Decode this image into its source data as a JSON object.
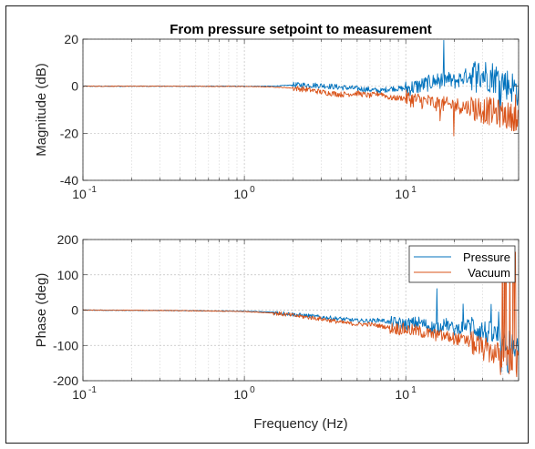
{
  "chart_data": [
    {
      "type": "line",
      "title": "From pressure setpoint to measurement",
      "xlabel": "",
      "ylabel": "Magnitude (dB)",
      "xscale": "log",
      "xlim": [
        0.1,
        50
      ],
      "ylim": [
        -40,
        20
      ],
      "xticks": [
        {
          "base": "10",
          "exp": "-1"
        },
        {
          "base": "10",
          "exp": "0"
        },
        {
          "base": "10",
          "exp": "1"
        }
      ],
      "yticks": [
        "20",
        "0",
        "-20",
        "-40"
      ],
      "ytick_values": [
        20,
        0,
        -20,
        -40
      ],
      "grid": "on (major and minor)",
      "series": [
        {
          "color": "#0072BD",
          "x": [
            0.1,
            0.3,
            1,
            1.5,
            2,
            2.5,
            3,
            4,
            5,
            6,
            7,
            8,
            10,
            12,
            15,
            18,
            20,
            25,
            30,
            35,
            40,
            45,
            50
          ],
          "y": [
            0,
            0,
            0,
            0,
            0.5,
            0.5,
            0.3,
            -0.5,
            -1,
            -1.5,
            -2,
            -1,
            -1,
            0,
            2,
            3,
            2,
            5,
            5,
            4,
            2,
            0,
            -2
          ]
        },
        {
          "color": "#D95319",
          "x": [
            0.1,
            0.3,
            1,
            1.5,
            2,
            2.5,
            3,
            4,
            5,
            6,
            7,
            8,
            10,
            12,
            15,
            18,
            20,
            25,
            30,
            35,
            40,
            45,
            50
          ],
          "y": [
            0,
            0,
            -0.1,
            -0.3,
            -0.8,
            -1.5,
            -2.5,
            -3.5,
            -3,
            -4,
            -3,
            -5,
            -5,
            -6,
            -7,
            -8,
            -8,
            -9,
            -10,
            -11,
            -12,
            -13,
            -13
          ]
        }
      ]
    },
    {
      "type": "line",
      "title": "",
      "xlabel": "Frequency (Hz)",
      "ylabel": "Phase (deg)",
      "xscale": "log",
      "xlim": [
        0.1,
        50
      ],
      "ylim": [
        -200,
        200
      ],
      "xticks": [
        {
          "base": "10",
          "exp": "-1"
        },
        {
          "base": "10",
          "exp": "0"
        },
        {
          "base": "10",
          "exp": "1"
        }
      ],
      "yticks": [
        "200",
        "100",
        "0",
        "-100",
        "-200"
      ],
      "ytick_values": [
        200,
        100,
        0,
        -100,
        -200
      ],
      "grid": "on (major and minor)",
      "legend_position": "top-right",
      "series": [
        {
          "name": "Pressure",
          "color": "#0072BD",
          "x": [
            0.1,
            0.3,
            0.5,
            1,
            1.5,
            2,
            3,
            4,
            5,
            6,
            7,
            8,
            10,
            12,
            15,
            18,
            20,
            25,
            30,
            35,
            40,
            45,
            50
          ],
          "y": [
            0,
            -1,
            -2,
            -3,
            -6,
            -12,
            -20,
            -25,
            -30,
            -30,
            -28,
            -35,
            -40,
            -35,
            -50,
            -40,
            -55,
            -40,
            -60,
            -70,
            -80,
            -90,
            -110
          ]
        },
        {
          "name": "Vacuum",
          "color": "#D95319",
          "x": [
            0.1,
            0.3,
            0.5,
            1,
            1.5,
            2,
            3,
            4,
            5,
            6,
            7,
            8,
            10,
            12,
            15,
            18,
            20,
            25,
            30,
            35,
            40,
            45,
            50
          ],
          "y": [
            0,
            -1,
            -2,
            -4,
            -8,
            -15,
            -25,
            -35,
            -40,
            -40,
            -45,
            -50,
            -55,
            -60,
            -70,
            -75,
            -80,
            -90,
            -110,
            -120,
            -130,
            -140,
            -150
          ]
        }
      ]
    }
  ]
}
